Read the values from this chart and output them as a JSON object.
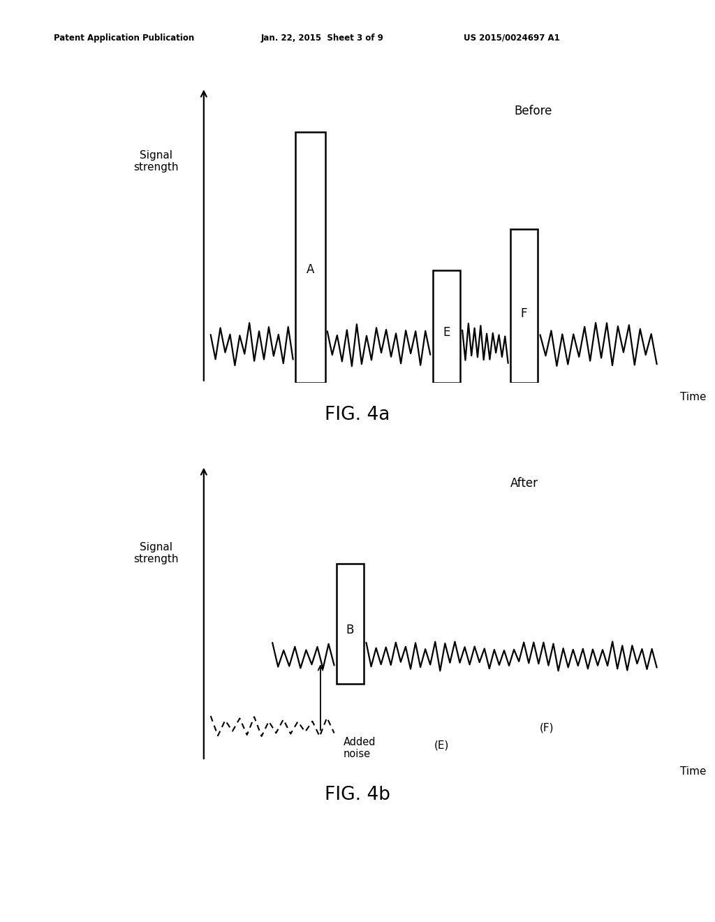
{
  "header_left": "Patent Application Publication",
  "header_mid": "Jan. 22, 2015  Sheet 3 of 9",
  "header_right": "US 2015/0024697 A1",
  "fig4a_label": "FIG. 4a",
  "fig4b_label": "FIG. 4b",
  "before_label": "Before",
  "after_label": "After",
  "signal_strength_label": "Signal\nstrength",
  "time_label": "Time",
  "added_noise_label": "Added\nnoise",
  "bg_color": "#ffffff",
  "line_color": "#000000"
}
